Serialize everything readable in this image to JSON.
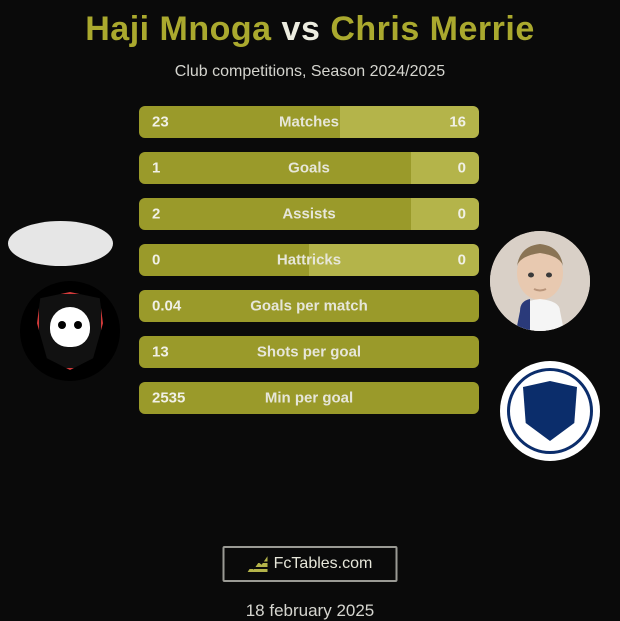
{
  "title": {
    "player1": "Haji Mnoga",
    "vs": "vs",
    "player2": "Chris Merrie"
  },
  "subtitle": "Club competitions, Season 2024/2025",
  "colors": {
    "bar_left": "#9a9a2a",
    "bar_right": "#b4b44a",
    "bar_right_solo": "#5a5a4a",
    "bg": "#0a0a0a",
    "text": "#e6e6d9"
  },
  "rows": [
    {
      "label": "Matches",
      "left_val": "23",
      "right_val": "16",
      "left_w": 59,
      "right_w": 41
    },
    {
      "label": "Goals",
      "left_val": "1",
      "right_val": "0",
      "left_w": 80,
      "right_w": 20
    },
    {
      "label": "Assists",
      "left_val": "2",
      "right_val": "0",
      "left_w": 80,
      "right_w": 20
    },
    {
      "label": "Hattricks",
      "left_val": "0",
      "right_val": "0",
      "left_w": 50,
      "right_w": 50
    },
    {
      "label": "Goals per match",
      "left_val": "0.04",
      "right_val": "",
      "left_w": 100,
      "right_w": 0
    },
    {
      "label": "Shots per goal",
      "left_val": "13",
      "right_val": "",
      "left_w": 100,
      "right_w": 0
    },
    {
      "label": "Min per goal",
      "left_val": "2535",
      "right_val": "",
      "left_w": 100,
      "right_w": 0
    }
  ],
  "footer": {
    "logo_text": "FcTables.com",
    "date": "18 february 2025"
  }
}
